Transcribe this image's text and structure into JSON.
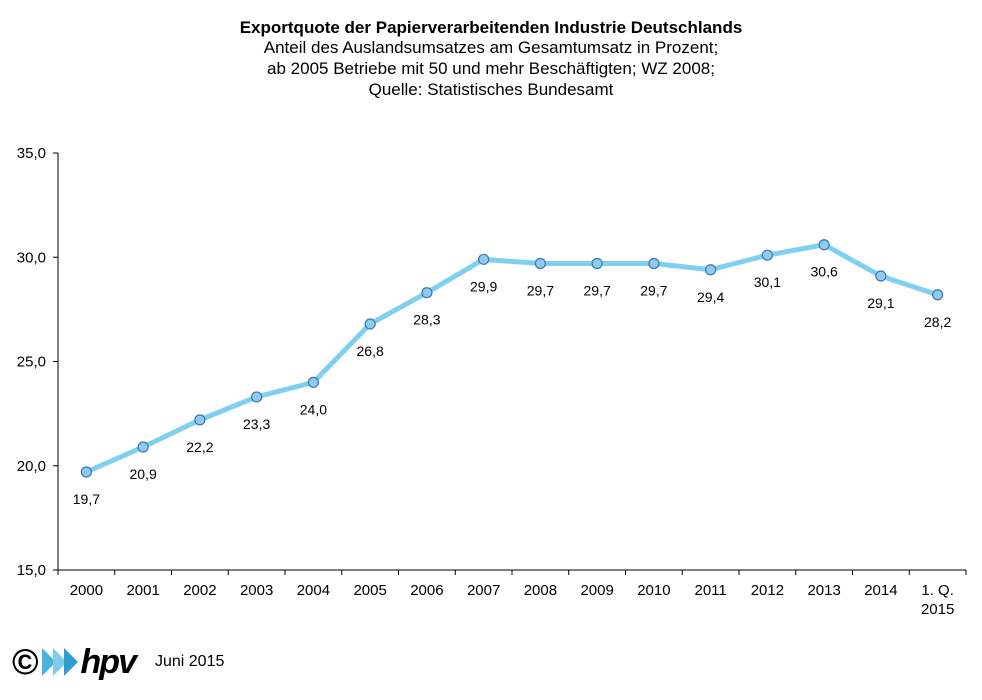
{
  "chart_data": {
    "type": "line",
    "title": "Exportquote der Papierverarbeitenden Industrie Deutschlands",
    "subtitle_lines": [
      "Anteil des Auslandsumsatzes  am Gesamtumsatz in Prozent;",
      "ab 2005 Betriebe mit 50 und mehr Beschäftigten; WZ 2008;",
      "Quelle: Statistisches Bundesamt"
    ],
    "categories": [
      "2000",
      "2001",
      "2002",
      "2003",
      "2004",
      "2005",
      "2006",
      "2007",
      "2008",
      "2009",
      "2010",
      "2011",
      "2012",
      "2013",
      "2014",
      "1. Q.\n2015"
    ],
    "values": [
      19.7,
      20.9,
      22.2,
      23.3,
      24.0,
      26.8,
      28.3,
      29.9,
      29.7,
      29.7,
      29.7,
      29.4,
      30.1,
      30.6,
      29.1,
      28.2
    ],
    "value_labels": [
      "19,7",
      "20,9",
      "22,2",
      "23,3",
      "24,0",
      "26,8",
      "28,3",
      "29,9",
      "29,7",
      "29,7",
      "29,7",
      "29,4",
      "30,1",
      "30,6",
      "29,1",
      "28,2"
    ],
    "y_ticks": [
      15,
      20,
      25,
      30,
      35
    ],
    "y_tick_labels": [
      "15,0",
      "20,0",
      "25,0",
      "30,0",
      "35,0"
    ],
    "ylim": [
      15,
      35
    ],
    "grid": false,
    "legend": "none",
    "line_color": "#7fd0f0",
    "marker_color": "#8fcbf0",
    "marker_edge_color": "#3a78b0"
  },
  "footer": {
    "copyright": "©",
    "brand": "hpv",
    "date": "Juni 2015"
  }
}
